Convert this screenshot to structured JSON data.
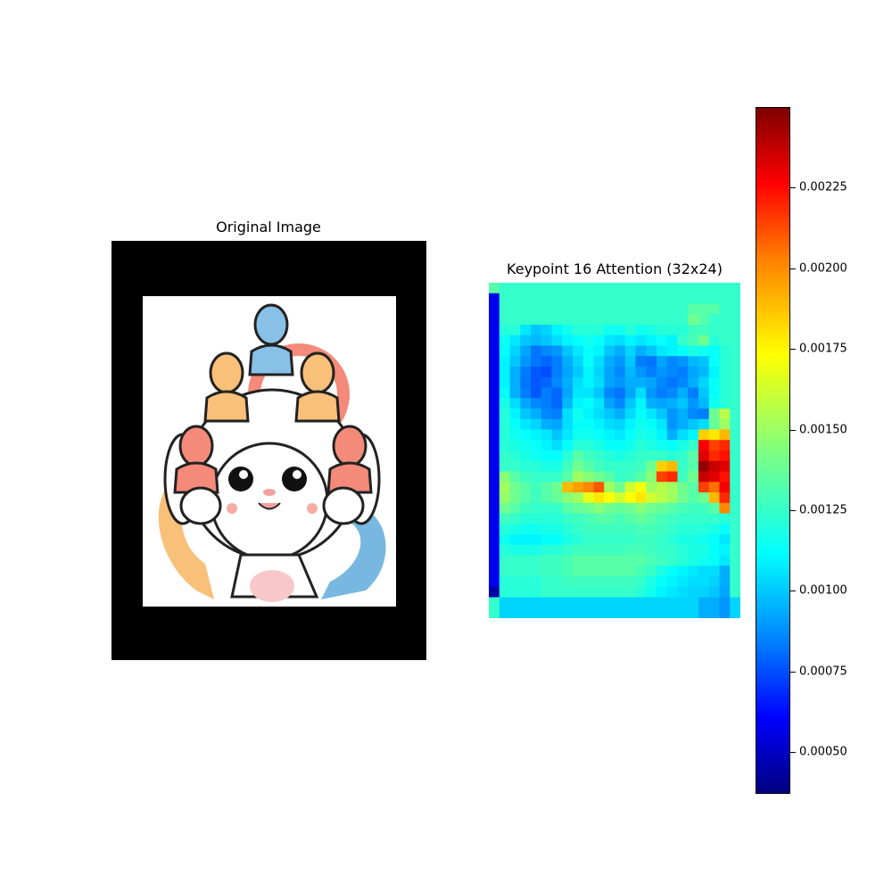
{
  "chart_data": [
    {
      "type": "image",
      "title": "Original Image"
    },
    {
      "type": "heatmap",
      "title": "Keypoint 16 Attention (32x24)",
      "rows": 32,
      "cols": 24,
      "colormap": "jet",
      "vmin": 0.00037,
      "vmax": 0.0025,
      "colorbar_ticks": [
        "0.00050",
        "0.00075",
        "0.00100",
        "0.00125",
        "0.00150",
        "0.00175",
        "0.00200",
        "0.00225"
      ],
      "colorbar_tick_values": [
        0.0005,
        0.00075,
        0.001,
        0.00125,
        0.0015,
        0.00175,
        0.002,
        0.00225
      ],
      "values": [
        [
          0.00135,
          0.00128,
          0.00128,
          0.00128,
          0.00128,
          0.00128,
          0.00128,
          0.00128,
          0.00128,
          0.00128,
          0.00128,
          0.00128,
          0.00128,
          0.00128,
          0.00128,
          0.00128,
          0.00128,
          0.00128,
          0.00128,
          0.00128,
          0.00128,
          0.00128,
          0.00128,
          0.00128
        ],
        [
          0.0006,
          0.00128,
          0.00128,
          0.00128,
          0.00128,
          0.00128,
          0.00128,
          0.00128,
          0.00128,
          0.00128,
          0.00128,
          0.00128,
          0.00128,
          0.00128,
          0.00128,
          0.00128,
          0.00128,
          0.00128,
          0.00128,
          0.00128,
          0.00128,
          0.00128,
          0.00128,
          0.00128
        ],
        [
          0.0006,
          0.00128,
          0.00128,
          0.00128,
          0.00128,
          0.00128,
          0.00128,
          0.00128,
          0.00128,
          0.00128,
          0.00128,
          0.00128,
          0.00128,
          0.00128,
          0.00128,
          0.00128,
          0.00128,
          0.00128,
          0.00128,
          0.00135,
          0.00135,
          0.00135,
          0.00128,
          0.00128
        ],
        [
          0.0006,
          0.00128,
          0.00128,
          0.00128,
          0.00128,
          0.00128,
          0.00128,
          0.00128,
          0.00128,
          0.00128,
          0.00128,
          0.00128,
          0.00128,
          0.00128,
          0.00128,
          0.00128,
          0.00128,
          0.00128,
          0.00128,
          0.0014,
          0.00135,
          0.00128,
          0.00128,
          0.00128
        ],
        [
          0.0006,
          0.00125,
          0.00125,
          0.00112,
          0.00105,
          0.00108,
          0.00115,
          0.0012,
          0.00125,
          0.00125,
          0.00125,
          0.0012,
          0.0012,
          0.00125,
          0.0012,
          0.00122,
          0.00125,
          0.00125,
          0.00125,
          0.0013,
          0.0013,
          0.00128,
          0.00128,
          0.00128
        ],
        [
          0.0006,
          0.0012,
          0.00112,
          0.00105,
          0.00102,
          0.00105,
          0.0011,
          0.00115,
          0.00118,
          0.0012,
          0.00118,
          0.00112,
          0.0011,
          0.00115,
          0.00112,
          0.00115,
          0.00118,
          0.00115,
          0.00128,
          0.00132,
          0.0014,
          0.00125,
          0.00128,
          0.00128
        ],
        [
          0.0006,
          0.00118,
          0.00108,
          0.00098,
          0.00088,
          0.00092,
          0.00095,
          0.00105,
          0.00112,
          0.00118,
          0.00115,
          0.00105,
          0.001,
          0.00108,
          0.001,
          0.00105,
          0.00112,
          0.00115,
          0.00118,
          0.00122,
          0.0012,
          0.00118,
          0.00125,
          0.00128
        ],
        [
          0.0006,
          0.00115,
          0.00105,
          0.00095,
          0.00088,
          0.00085,
          0.0009,
          0.001,
          0.00108,
          0.00118,
          0.0011,
          0.001,
          0.00095,
          0.00105,
          0.0009,
          0.00088,
          0.00098,
          0.00092,
          0.00095,
          0.00102,
          0.00105,
          0.00118,
          0.00125,
          0.00128
        ],
        [
          0.0006,
          0.00115,
          0.001,
          0.0009,
          0.00082,
          0.0008,
          0.0009,
          0.00098,
          0.00105,
          0.00115,
          0.00108,
          0.00098,
          0.00092,
          0.00102,
          0.00095,
          0.0009,
          0.00095,
          0.00092,
          0.0009,
          0.00098,
          0.00102,
          0.00115,
          0.00125,
          0.00128
        ],
        [
          0.0006,
          0.00115,
          0.001,
          0.00088,
          0.00082,
          0.00085,
          0.00092,
          0.001,
          0.0011,
          0.00115,
          0.0011,
          0.00098,
          0.00095,
          0.001,
          0.001,
          0.00098,
          0.00092,
          0.00088,
          0.00092,
          0.001,
          0.00108,
          0.00118,
          0.00125,
          0.00128
        ],
        [
          0.0006,
          0.00118,
          0.001,
          0.0009,
          0.00082,
          0.0009,
          0.00085,
          0.00098,
          0.00112,
          0.00112,
          0.00105,
          0.00092,
          0.00088,
          0.00098,
          0.0011,
          0.00095,
          0.0009,
          0.00092,
          0.001,
          0.0009,
          0.00105,
          0.00118,
          0.00125,
          0.00128
        ],
        [
          0.0006,
          0.00122,
          0.0011,
          0.00098,
          0.00092,
          0.0009,
          0.00085,
          0.00102,
          0.00115,
          0.00118,
          0.00112,
          0.00098,
          0.00092,
          0.00105,
          0.00115,
          0.001,
          0.00098,
          0.001,
          0.00105,
          0.00095,
          0.00102,
          0.0012,
          0.00125,
          0.00128
        ],
        [
          0.0006,
          0.00125,
          0.00115,
          0.00105,
          0.001,
          0.00092,
          0.0009,
          0.0011,
          0.0012,
          0.00115,
          0.0011,
          0.00105,
          0.001,
          0.0011,
          0.00118,
          0.00112,
          0.00105,
          0.00095,
          0.001,
          0.00092,
          0.0009,
          0.0014,
          0.00155,
          0.00128
        ],
        [
          0.0006,
          0.00125,
          0.00118,
          0.00112,
          0.00108,
          0.001,
          0.00098,
          0.0011,
          0.00118,
          0.00118,
          0.00115,
          0.0011,
          0.00108,
          0.00115,
          0.0012,
          0.00118,
          0.00112,
          0.00095,
          0.001,
          0.00105,
          0.0011,
          0.00138,
          0.0015,
          0.00128
        ],
        [
          0.0006,
          0.00125,
          0.0012,
          0.00118,
          0.00115,
          0.00112,
          0.00105,
          0.00112,
          0.0012,
          0.0012,
          0.00118,
          0.00115,
          0.00112,
          0.00118,
          0.00122,
          0.0012,
          0.00115,
          0.001,
          0.0011,
          0.00115,
          0.0018,
          0.00175,
          0.00185,
          0.00128
        ],
        [
          0.0006,
          0.00125,
          0.00122,
          0.0012,
          0.00118,
          0.00115,
          0.0011,
          0.00118,
          0.00125,
          0.00125,
          0.00122,
          0.00118,
          0.00118,
          0.0012,
          0.00125,
          0.00122,
          0.0012,
          0.00118,
          0.00122,
          0.00128,
          0.00225,
          0.0021,
          0.00215,
          0.00128
        ],
        [
          0.0006,
          0.00128,
          0.00125,
          0.00122,
          0.0012,
          0.00118,
          0.00118,
          0.00125,
          0.00135,
          0.0013,
          0.00128,
          0.00125,
          0.00122,
          0.00125,
          0.00128,
          0.00128,
          0.00128,
          0.00125,
          0.00128,
          0.00135,
          0.0023,
          0.00215,
          0.0022,
          0.00128
        ],
        [
          0.0006,
          0.00128,
          0.00128,
          0.00125,
          0.00125,
          0.00122,
          0.00122,
          0.0013,
          0.0014,
          0.00135,
          0.0013,
          0.00128,
          0.00128,
          0.00128,
          0.0013,
          0.0014,
          0.0018,
          0.00185,
          0.00128,
          0.00135,
          0.00245,
          0.00235,
          0.0023,
          0.00128
        ],
        [
          0.0006,
          0.00145,
          0.00135,
          0.0013,
          0.00128,
          0.00128,
          0.00128,
          0.00135,
          0.0015,
          0.00145,
          0.0014,
          0.00135,
          0.00128,
          0.0013,
          0.00135,
          0.00145,
          0.0021,
          0.00215,
          0.0013,
          0.0014,
          0.00235,
          0.0023,
          0.0022,
          0.00128
        ],
        [
          0.0006,
          0.0015,
          0.0014,
          0.00135,
          0.0013,
          0.00135,
          0.0014,
          0.00185,
          0.0019,
          0.00195,
          0.00205,
          0.0015,
          0.0014,
          0.0016,
          0.00168,
          0.0015,
          0.00155,
          0.0015,
          0.0014,
          0.00135,
          0.0021,
          0.002,
          0.00225,
          0.00128
        ],
        [
          0.0006,
          0.00148,
          0.0014,
          0.00135,
          0.0013,
          0.00135,
          0.00138,
          0.00145,
          0.0015,
          0.00165,
          0.00175,
          0.0017,
          0.0016,
          0.0017,
          0.00175,
          0.0016,
          0.00155,
          0.0015,
          0.0014,
          0.00135,
          0.0014,
          0.00185,
          0.00215,
          0.00128
        ],
        [
          0.0006,
          0.0014,
          0.00135,
          0.0013,
          0.00128,
          0.00128,
          0.00128,
          0.00135,
          0.00138,
          0.0014,
          0.00145,
          0.0014,
          0.00138,
          0.0014,
          0.00145,
          0.0014,
          0.00138,
          0.00135,
          0.00132,
          0.0013,
          0.0013,
          0.00135,
          0.00195,
          0.00128
        ],
        [
          0.0006,
          0.0013,
          0.00128,
          0.00125,
          0.00125,
          0.00125,
          0.00125,
          0.00128,
          0.0013,
          0.00132,
          0.00135,
          0.00135,
          0.00132,
          0.00135,
          0.00138,
          0.00135,
          0.00132,
          0.0013,
          0.00128,
          0.00128,
          0.00128,
          0.00128,
          0.00125,
          0.00128
        ],
        [
          0.0006,
          0.00125,
          0.00122,
          0.0012,
          0.0012,
          0.00122,
          0.00122,
          0.00125,
          0.00128,
          0.0013,
          0.0013,
          0.0013,
          0.0013,
          0.0013,
          0.00132,
          0.00132,
          0.0013,
          0.00128,
          0.00125,
          0.00125,
          0.00125,
          0.00122,
          0.00118,
          0.00128
        ],
        [
          0.0006,
          0.0012,
          0.00115,
          0.00115,
          0.00115,
          0.00118,
          0.00118,
          0.00122,
          0.00125,
          0.00128,
          0.00128,
          0.00128,
          0.00128,
          0.00128,
          0.0013,
          0.0013,
          0.00128,
          0.00125,
          0.00122,
          0.00122,
          0.0012,
          0.00118,
          0.00112,
          0.00128
        ],
        [
          0.0006,
          0.00125,
          0.00122,
          0.00122,
          0.00122,
          0.00125,
          0.00125,
          0.00128,
          0.0013,
          0.0013,
          0.0013,
          0.0013,
          0.0013,
          0.00132,
          0.00132,
          0.0013,
          0.00128,
          0.00128,
          0.00125,
          0.00122,
          0.00122,
          0.00118,
          0.00115,
          0.00128
        ],
        [
          0.0006,
          0.00128,
          0.00128,
          0.00128,
          0.00128,
          0.0013,
          0.0013,
          0.00132,
          0.00135,
          0.00135,
          0.00135,
          0.00135,
          0.00135,
          0.00135,
          0.00135,
          0.00132,
          0.0013,
          0.00128,
          0.00125,
          0.00122,
          0.0012,
          0.00118,
          0.00112,
          0.00128
        ],
        [
          0.0006,
          0.00128,
          0.00128,
          0.00128,
          0.00128,
          0.0013,
          0.0013,
          0.00132,
          0.00135,
          0.00135,
          0.00135,
          0.00135,
          0.00135,
          0.00135,
          0.00132,
          0.00128,
          0.00122,
          0.00118,
          0.00115,
          0.00112,
          0.0011,
          0.0011,
          0.001,
          0.00128
        ],
        [
          0.0006,
          0.00125,
          0.00125,
          0.00125,
          0.00125,
          0.00128,
          0.00128,
          0.0013,
          0.0013,
          0.0013,
          0.0013,
          0.0013,
          0.0013,
          0.0013,
          0.00128,
          0.00122,
          0.00118,
          0.00115,
          0.00112,
          0.0011,
          0.0011,
          0.00108,
          0.001,
          0.00128
        ],
        [
          0.00045,
          0.00125,
          0.00125,
          0.00125,
          0.00125,
          0.00128,
          0.00128,
          0.00128,
          0.00128,
          0.00128,
          0.00128,
          0.00128,
          0.00128,
          0.00128,
          0.00125,
          0.0012,
          0.00115,
          0.00112,
          0.0011,
          0.00108,
          0.00108,
          0.00105,
          0.00098,
          0.00128
        ],
        [
          0.00128,
          0.00108,
          0.00108,
          0.00108,
          0.00108,
          0.00108,
          0.00108,
          0.00108,
          0.00108,
          0.00108,
          0.00108,
          0.00108,
          0.00108,
          0.00108,
          0.00108,
          0.00108,
          0.00108,
          0.00108,
          0.00108,
          0.00108,
          0.001,
          0.001,
          0.00095,
          0.00108
        ],
        [
          0.00128,
          0.00108,
          0.00108,
          0.00108,
          0.00108,
          0.00108,
          0.00108,
          0.00108,
          0.00108,
          0.00108,
          0.00108,
          0.00108,
          0.00108,
          0.00108,
          0.00108,
          0.00108,
          0.00108,
          0.00108,
          0.00108,
          0.00108,
          0.001,
          0.001,
          0.00095,
          0.00108
        ]
      ]
    }
  ]
}
